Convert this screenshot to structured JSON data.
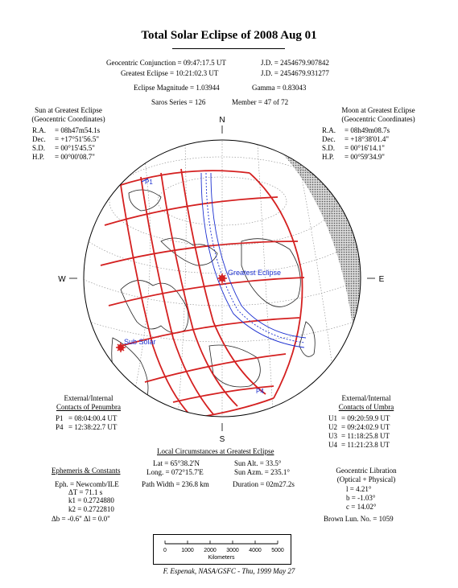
{
  "title": "Total Solar Eclipse of 2008 Aug 01",
  "header": {
    "geo_conj_label": "Geocentric Conjunction = ",
    "geo_conj_value": "09:47:17.5 UT",
    "jd1_label": "J.D. = ",
    "jd1_value": "2454679.907842",
    "greatest_label": "Greatest Eclipse = ",
    "greatest_value": "10:21:02.3 UT",
    "jd2_label": "J.D. = ",
    "jd2_value": "2454679.931277",
    "magnitude_label": "Eclipse Magnitude = ",
    "magnitude_value": "1.03944",
    "gamma_label": "Gamma = ",
    "gamma_value": "0.83043",
    "saros_label": "Saros Series = ",
    "saros_value": "126",
    "member_label": "Member = ",
    "member_value": "47 of 72"
  },
  "sun": {
    "heading1": "Sun at Greatest Eclipse",
    "heading2": "(Geocentric Coordinates)",
    "rows": [
      {
        "k": "R.A.",
        "v": "=  08h47m54.1s"
      },
      {
        "k": "Dec.",
        "v": "= +17°51'56.5\""
      },
      {
        "k": "S.D.",
        "v": "=  00°15'45.5\""
      },
      {
        "k": "H.P.",
        "v": "=  00°00'08.7\""
      }
    ]
  },
  "moon": {
    "heading1": "Moon at Greatest Eclipse",
    "heading2": "(Geocentric Coordinates)",
    "rows": [
      {
        "k": "R.A.",
        "v": "=  08h49m08.7s"
      },
      {
        "k": "Dec.",
        "v": "= +18°38'01.4\""
      },
      {
        "k": "S.D.",
        "v": "=  00°16'14.1\""
      },
      {
        "k": "H.P.",
        "v": "=  00°59'34.9\""
      }
    ]
  },
  "map": {
    "north": "N",
    "south": "S",
    "west": "W",
    "east": "E",
    "greatest_eclipse_label": "Greatest Eclipse",
    "sub_solar_label": "Sub Solar",
    "p1_label": "P1",
    "p4_label": "P4",
    "colors": {
      "path": "#d42020",
      "umbra": "#1b2fd0",
      "text_blue": "#1b2fd0",
      "night": "#9a9a9a"
    }
  },
  "contacts_penumbra": {
    "heading1": "External/Internal",
    "heading2": "Contacts of Penumbra",
    "rows": [
      {
        "k": "P1",
        "v": "= 08:04:00.4 UT"
      },
      {
        "k": "P4",
        "v": "= 12:38:22.7 UT"
      }
    ]
  },
  "contacts_umbra": {
    "heading1": "External/Internal",
    "heading2": "Contacts of Umbra",
    "rows": [
      {
        "k": "U1",
        "v": "= 09:20:59.9 UT"
      },
      {
        "k": "U2",
        "v": "= 09:24:02.9 UT"
      },
      {
        "k": "U3",
        "v": "= 11:18:25.8 UT"
      },
      {
        "k": "U4",
        "v": "= 11:21:23.8 UT"
      }
    ]
  },
  "local": {
    "heading": "Local Circumstances at Greatest Eclipse",
    "lat": "Lat =   65°38.2'N",
    "long": "Long. = 072°15.7'E",
    "sun_alt": "Sun Alt. =   33.5°",
    "sun_azm": "Sun Azm. = 235.1°",
    "path_width": "Path Width = 236.8 km",
    "duration": "Duration = 02m27.2s"
  },
  "ephemeris": {
    "heading": "Ephemeris & Constants",
    "eph": "Eph. = Newcomb/ILE",
    "dt": "ΔT =    71.1 s",
    "k1": "k1 = 0.2724880",
    "k2": "k2 = 0.2722810",
    "db": "Δb =  -0.6\"    Δl =   0.0\""
  },
  "libration": {
    "heading1": "Geocentric Libration",
    "heading2": "(Optical + Physical)",
    "l": "l =    4.21°",
    "b": "b =   -1.03°",
    "c": "c =   14.02°",
    "brown": "Brown Lun. No. = 1059"
  },
  "scale": {
    "ticks": [
      "0",
      "1000",
      "2000",
      "3000",
      "4000",
      "5000"
    ],
    "unit": "Kilometers"
  },
  "credit": "F. Espenak, NASA/GSFC - Thu, 1999 May 27"
}
